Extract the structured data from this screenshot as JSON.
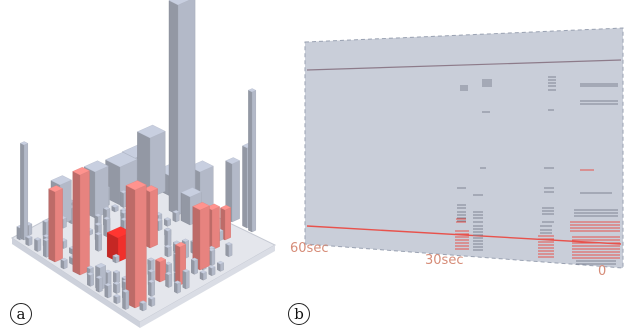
{
  "panels": [
    {
      "label": "a"
    },
    {
      "label": "b"
    }
  ],
  "time_axis": {
    "labels": [
      "60sec",
      "30sec",
      "0"
    ]
  },
  "colors": {
    "building": "#b3b9c8",
    "highlight": "#e7837f",
    "alert": "#f0302c",
    "ground": "#e4e6ec",
    "plane": "#c9ced9",
    "axis_text": "#d68c78"
  }
}
